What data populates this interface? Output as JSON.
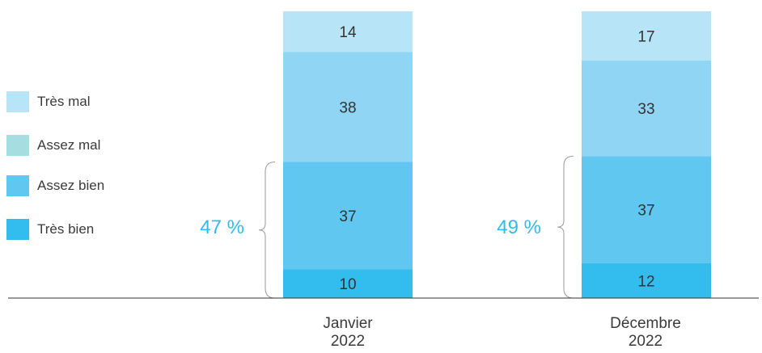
{
  "chart_data": {
    "type": "bar",
    "stacked": true,
    "categories": [
      "Janvier\n2022",
      "Décembre\n2022"
    ],
    "series": [
      {
        "name": "Très bien",
        "values": [
          10,
          12
        ],
        "color": "#33bdee"
      },
      {
        "name": "Assez bien",
        "values": [
          37,
          37
        ],
        "color": "#5fc7f0"
      },
      {
        "name": "Assez mal",
        "values": [
          38,
          33
        ],
        "color": "#90d5f3"
      },
      {
        "name": "Très mal",
        "values": [
          14,
          17
        ],
        "color": "#b8e4f8"
      }
    ],
    "legend": {
      "placement": "left",
      "entries": [
        {
          "name": "Très mal",
          "color": "#b8e4f8"
        },
        {
          "name": "Assez mal",
          "color": "#a6dde0"
        },
        {
          "name": "Assez bien",
          "color": "#5fc7f0"
        },
        {
          "name": "Très bien",
          "color": "#33bdee"
        }
      ]
    },
    "annotations": [
      {
        "label": "47 %",
        "category": "Janvier\n2022",
        "spans_series": [
          "Très bien",
          "Assez bien"
        ]
      },
      {
        "label": "49 %",
        "category": "Décembre\n2022",
        "spans_series": [
          "Très bien",
          "Assez bien"
        ]
      }
    ],
    "grid": false,
    "ylim": [
      0,
      100
    ],
    "accent_color": "#2fbbec"
  }
}
